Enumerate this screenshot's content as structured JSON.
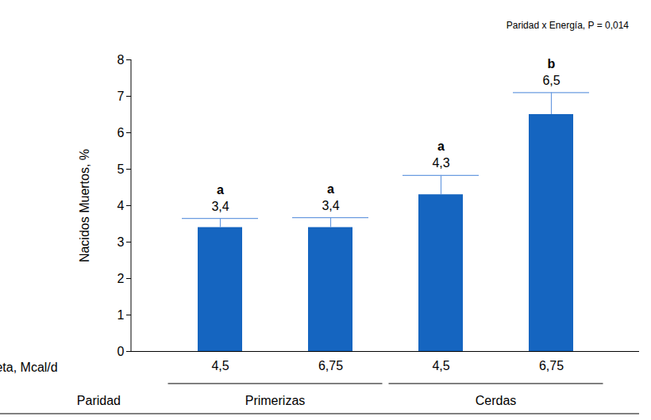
{
  "chart_data": {
    "type": "bar",
    "annotation": "Paridad x Energía, P = 0,014",
    "y_label": "Nacidos Muertos, %",
    "x_label": "Energ. Neta, Mcal/d",
    "group_label": "Paridad",
    "categories": [
      "4,5",
      "6,75",
      "4,5",
      "6,75"
    ],
    "groups": [
      "Primerizas",
      "Primerizas",
      "Cerdas",
      "Cerdas"
    ],
    "values": [
      3.4,
      3.4,
      4.3,
      6.5
    ],
    "value_labels": [
      "3,4",
      "3,4",
      "4,3",
      "6,5"
    ],
    "errors": [
      0.25,
      0.27,
      0.53,
      0.6
    ],
    "letters": [
      "a",
      "a",
      "a",
      "b"
    ],
    "color": "#1565c0",
    "ylim": [
      0,
      8
    ],
    "yticks": [
      0,
      1,
      2,
      3,
      4,
      5,
      6,
      7,
      8
    ],
    "grid": false,
    "data_labels": true
  }
}
